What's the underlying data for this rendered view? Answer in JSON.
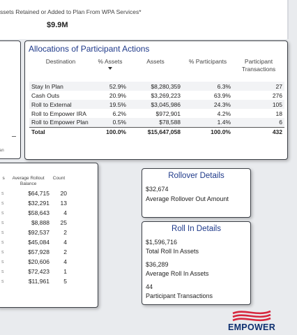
{
  "kpi": {
    "label": "ssets Retained or Added to Plan From WPA Services*",
    "value": "$9.9M"
  },
  "left_clip": {
    "text": "an"
  },
  "allocations": {
    "title": "Allocations of Participant Actions",
    "headers": [
      "Destination",
      "% Assets",
      "Assets",
      "% Participants",
      "Participant Transactions"
    ],
    "rows": [
      [
        "Stay In Plan",
        "52.9%",
        "$8,280,359",
        "6.3%",
        "27"
      ],
      [
        "Cash Outs",
        "20.9%",
        "$3,269,223",
        "63.9%",
        "276"
      ],
      [
        "Roll to External",
        "19.5%",
        "$3,045,986",
        "24.3%",
        "105"
      ],
      [
        "Roll to Empower IRA",
        "6.2%",
        "$972,901",
        "4.2%",
        "18"
      ],
      [
        "Roll to Empower Plan",
        "0.5%",
        "$78,588",
        "1.4%",
        "6"
      ]
    ],
    "total": [
      "Total",
      "100.0%",
      "$15,647,058",
      "100.0%",
      "432"
    ]
  },
  "rollout": {
    "left_header": "s",
    "headers": [
      "Average Rollout Balance",
      "Count"
    ],
    "rows": [
      [
        "$64,715",
        "20"
      ],
      [
        "$32,291",
        "13"
      ],
      [
        "$58,643",
        "4"
      ],
      [
        "$8,888",
        "25"
      ],
      [
        "$92,537",
        "2"
      ],
      [
        "$45,084",
        "4"
      ],
      [
        "$57,928",
        "2"
      ],
      [
        "$20,606",
        "4"
      ],
      [
        "$72,423",
        "1"
      ],
      [
        "$11,961",
        "5"
      ]
    ],
    "lead_char": "s"
  },
  "rollover_details": {
    "title": "Rollover Details",
    "value": "$32,674",
    "label": "Average Rollover Out Amount"
  },
  "roll_in_details": {
    "title": "Roll In Details",
    "items": [
      {
        "value": "$1,596,716",
        "label": "Total Roll In Assets"
      },
      {
        "value": "$36,289",
        "label": "Average Roll In Assets"
      },
      {
        "value": "44",
        "label": "Participant Transactions"
      }
    ]
  },
  "logo": {
    "text": "EMPOWER",
    "color_primary": "#0e2f6f",
    "color_accent": "#d7263d"
  }
}
